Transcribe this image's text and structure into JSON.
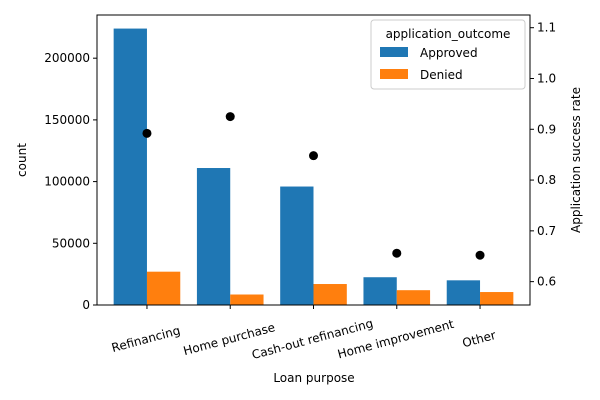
{
  "chart_data": {
    "type": "bar",
    "title": "",
    "xlabel": "Loan purpose",
    "ylabel": "count",
    "ylabel_right": "Application success rate",
    "categories": [
      "Refinancing",
      "Home purchase",
      "Cash-out refinancing",
      "Home improvement",
      "Other"
    ],
    "series": [
      {
        "name": "Approved",
        "color": "#1f77b4",
        "values": [
          224000,
          111000,
          96000,
          22500,
          20000
        ]
      },
      {
        "name": "Denied",
        "color": "#ff7f0e",
        "values": [
          27000,
          8500,
          17000,
          12000,
          10500
        ]
      }
    ],
    "overlay": {
      "type": "scatter",
      "axis": "right",
      "color": "#000000",
      "values": [
        0.892,
        0.925,
        0.848,
        0.656,
        0.652
      ]
    },
    "ylim": [
      0,
      235000
    ],
    "yticks": [
      0,
      50000,
      100000,
      150000,
      200000
    ],
    "ylim_right": [
      0.554,
      1.125
    ],
    "yticks_right": [
      0.6,
      0.7,
      0.8,
      0.9,
      1.0,
      1.1
    ],
    "xtick_rotation_deg": -15,
    "grid": false,
    "legend": {
      "title": "application_outcome",
      "placement": "top-right",
      "entries": [
        "Approved",
        "Denied"
      ]
    }
  }
}
